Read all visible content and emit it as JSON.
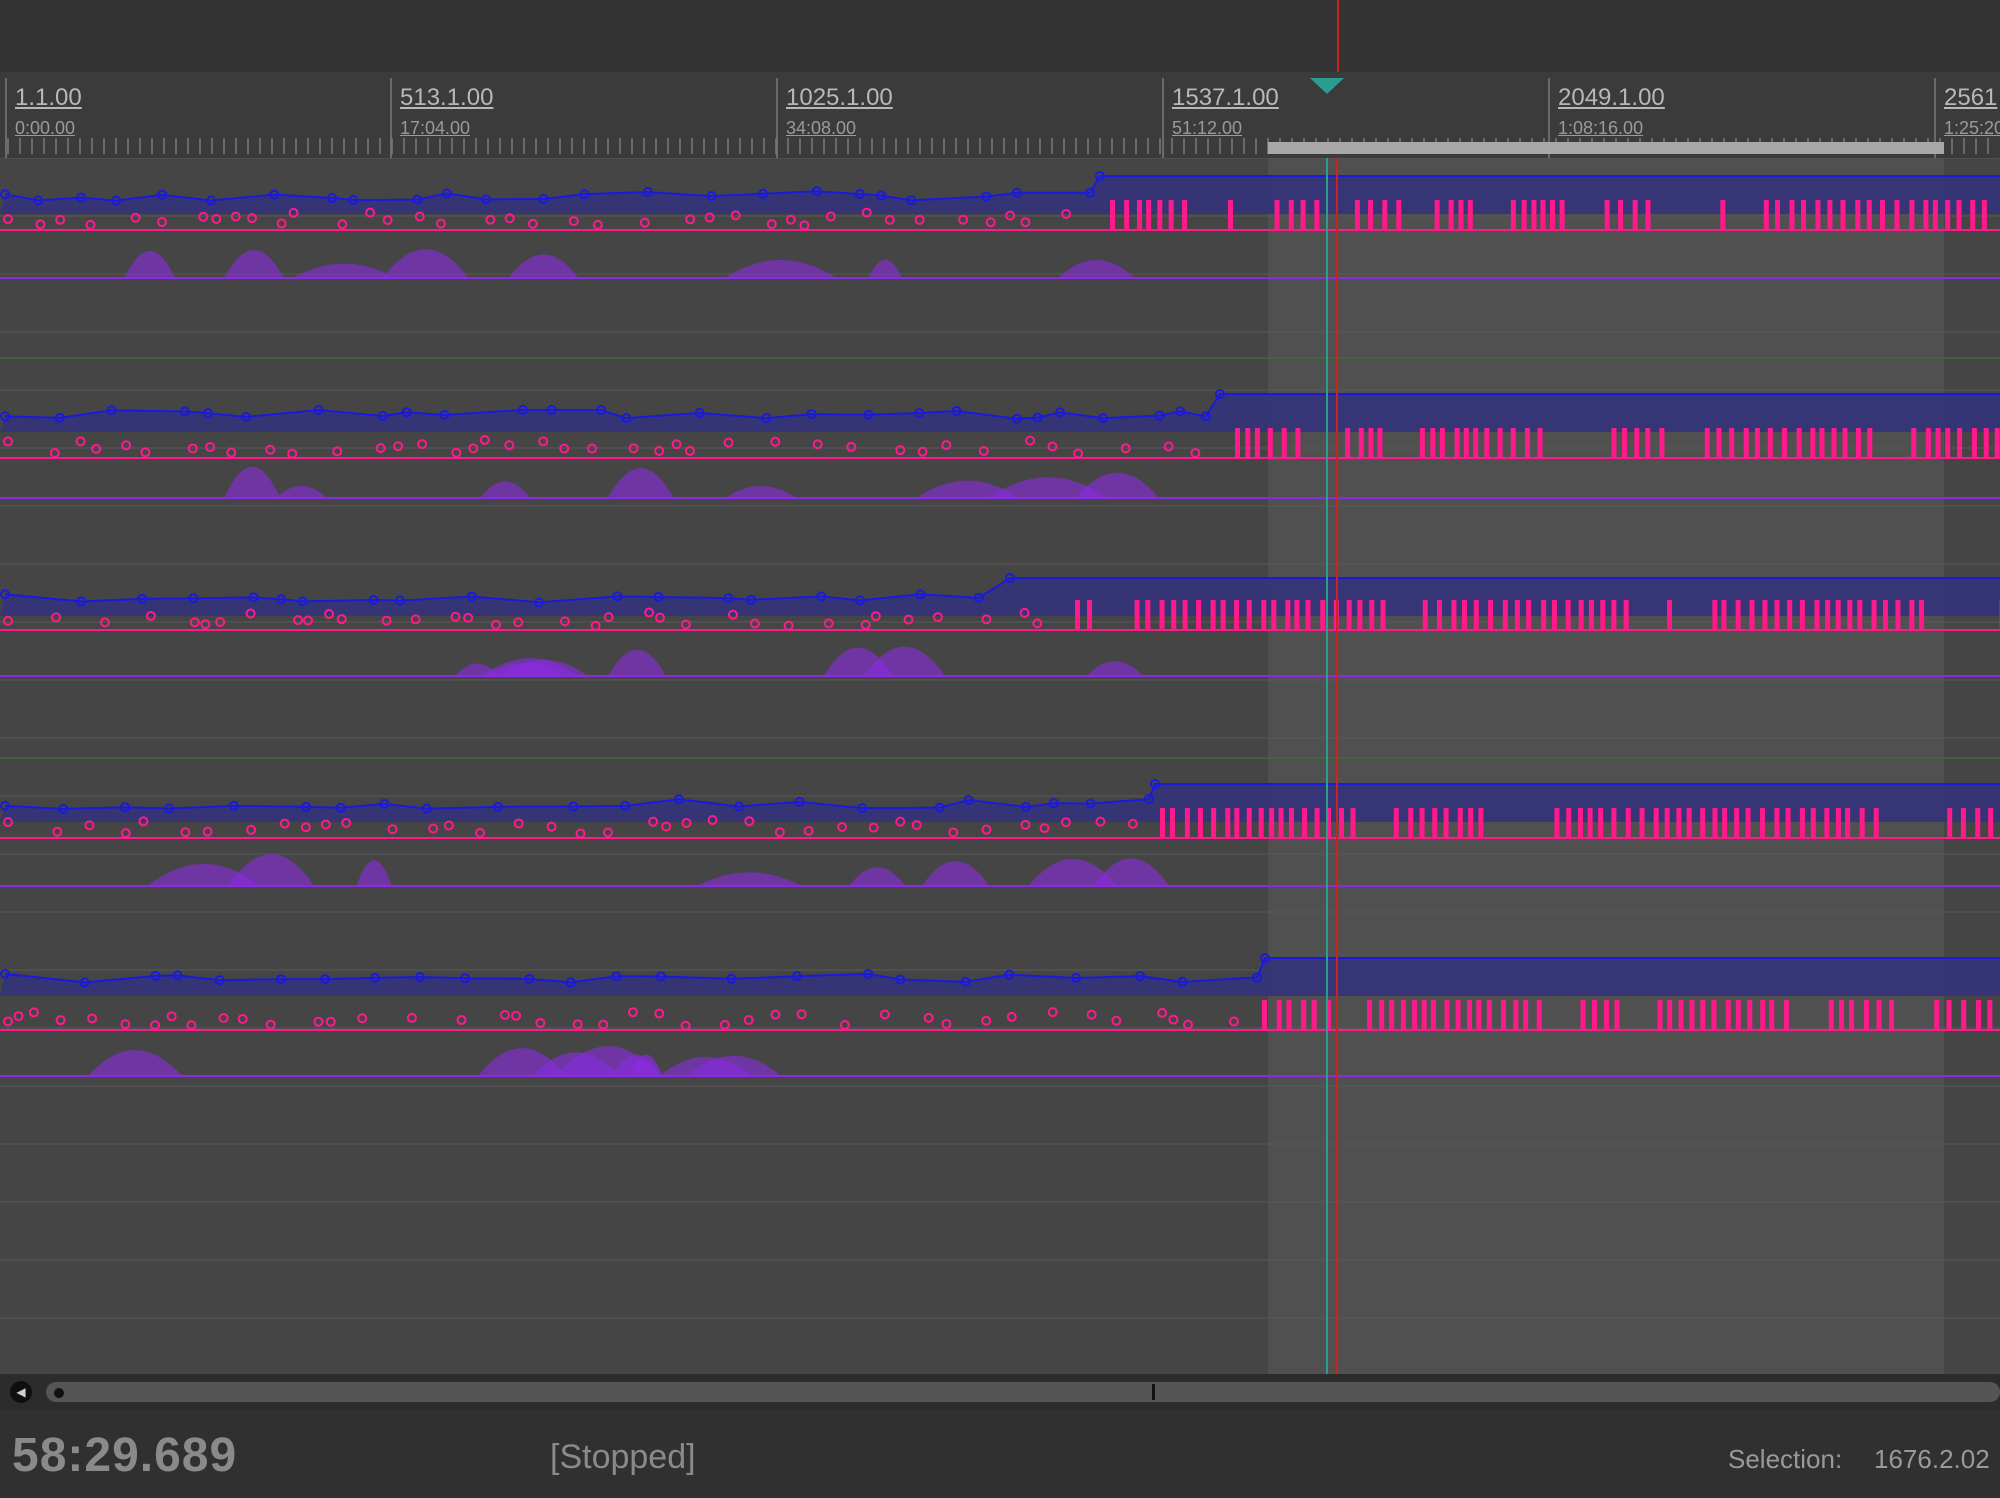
{
  "ruler": {
    "marks": [
      {
        "bar": "1.1.00",
        "time": "0:00.00"
      },
      {
        "bar": "513.1.00",
        "time": "17:04.00"
      },
      {
        "bar": "1025.1.00",
        "time": "34:08.00"
      },
      {
        "bar": "1537.1.00",
        "time": "51:12.00"
      },
      {
        "bar": "2049.1.00",
        "time": "1:08:16.00"
      },
      {
        "bar": "2561",
        "time": "1:25:20"
      }
    ]
  },
  "colors": {
    "volume_lane": "#1a1adc",
    "note_lane": "#ff1a8c",
    "velocity_lane": "#8a2be2",
    "playhead": "#cc2222",
    "cursor": "#2a9d8f",
    "selection": "#5a5a5a"
  },
  "status": {
    "clock": "58:29.689",
    "transport": "[Stopped]",
    "selection_label": "Selection:",
    "selection_value": "1676.2.02"
  },
  "scroll": {
    "left_icon": "scroll-left-icon"
  }
}
